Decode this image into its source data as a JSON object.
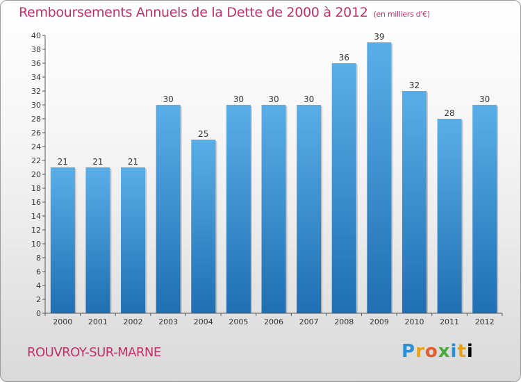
{
  "header": {
    "title": "Remboursements Annuels de la Dette de 2000 à 2012",
    "unit": "(en milliers d'€)"
  },
  "footer": {
    "commune": "ROUVROY-SUR-MARNE",
    "logo": [
      "P",
      "r",
      "o",
      "x",
      "i",
      "t",
      "i"
    ]
  },
  "colors": {
    "title": "#c0306a",
    "bar_top": "#5aaee8",
    "bar_bottom": "#1f6fb2"
  },
  "chart_data": {
    "type": "bar",
    "categories": [
      "2000",
      "2001",
      "2002",
      "2003",
      "2004",
      "2005",
      "2006",
      "2007",
      "2008",
      "2009",
      "2010",
      "2011",
      "2012"
    ],
    "values": [
      21,
      21,
      21,
      30,
      25,
      30,
      30,
      30,
      36,
      39,
      32,
      28,
      30
    ],
    "ylim": [
      0,
      40
    ],
    "yticks": [
      0,
      2,
      4,
      6,
      8,
      10,
      12,
      14,
      16,
      18,
      20,
      22,
      24,
      26,
      28,
      30,
      32,
      34,
      36,
      38,
      40
    ],
    "grid": false,
    "data_labels": true
  }
}
